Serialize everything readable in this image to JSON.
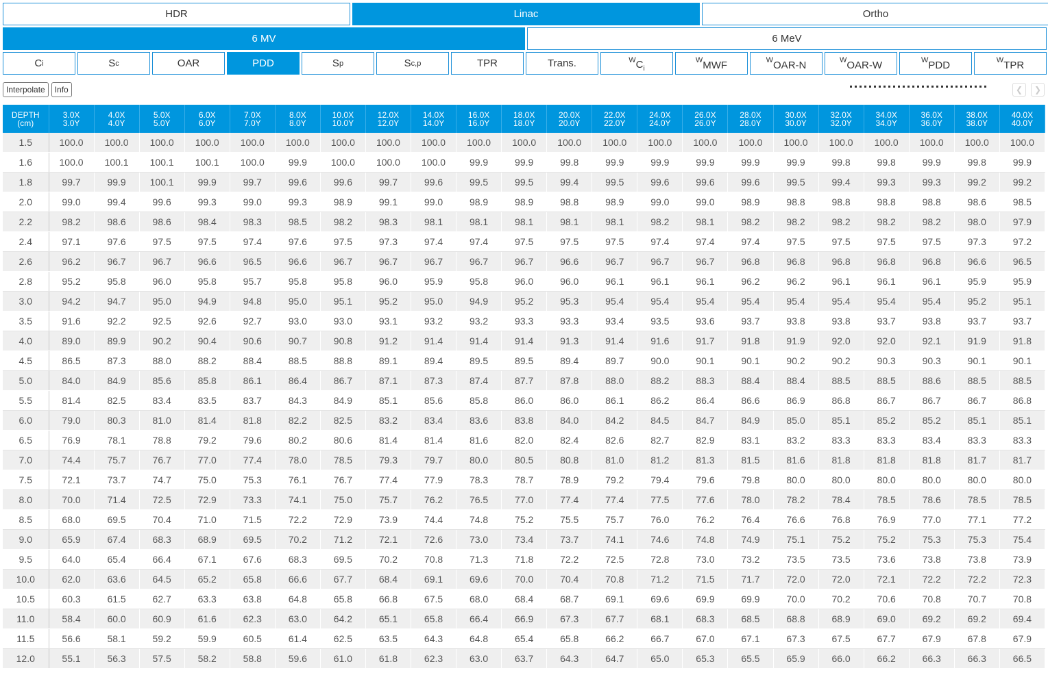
{
  "modality_tabs": [
    {
      "label": "HDR",
      "active": false
    },
    {
      "label": "Linac",
      "active": true
    },
    {
      "label": "Ortho",
      "active": false
    }
  ],
  "energy_tabs": [
    {
      "label": "6 MV",
      "active": true
    },
    {
      "label": "6 MeV",
      "active": false
    }
  ],
  "param_tabs": [
    {
      "main": "C",
      "sub": "i",
      "active": false
    },
    {
      "main": "S",
      "sub": "c",
      "active": false
    },
    {
      "main": "OAR",
      "sub": "",
      "active": false
    },
    {
      "main": "PDD",
      "sub": "",
      "active": true
    },
    {
      "main": "S",
      "sub": "p",
      "active": false
    },
    {
      "main": "S",
      "sub": "c,p",
      "active": false
    },
    {
      "main": "TPR",
      "sub": "",
      "active": false
    },
    {
      "main": "Trans.",
      "sub": "",
      "active": false
    },
    {
      "prefix": "W",
      "main": "C",
      "sub": "i",
      "active": false
    },
    {
      "prefix": "W",
      "main": "MWF",
      "sub": "",
      "active": false
    },
    {
      "prefix": "W",
      "main": "OAR-N",
      "sub": "",
      "active": false
    },
    {
      "prefix": "W",
      "main": "OAR-W",
      "sub": "",
      "active": false
    },
    {
      "prefix": "W",
      "main": "PDD",
      "sub": "",
      "active": false
    },
    {
      "prefix": "W",
      "main": "TPR",
      "sub": "",
      "active": false
    }
  ],
  "toolbar": {
    "interpolate_label": "Interpolate",
    "info_label": "Info",
    "prev_icon": "chevron-left-icon",
    "next_icon": "chevron-right-icon"
  },
  "colors": {
    "accent": "#0096de",
    "row_alt": "#efefef"
  },
  "table": {
    "depth_header_line1": "DEPTH",
    "depth_header_line2": "(cm)",
    "fields": [
      [
        "3.0X",
        "3.0Y"
      ],
      [
        "4.0X",
        "4.0Y"
      ],
      [
        "5.0X",
        "5.0Y"
      ],
      [
        "6.0X",
        "6.0Y"
      ],
      [
        "7.0X",
        "7.0Y"
      ],
      [
        "8.0X",
        "8.0Y"
      ],
      [
        "10.0X",
        "10.0Y"
      ],
      [
        "12.0X",
        "12.0Y"
      ],
      [
        "14.0X",
        "14.0Y"
      ],
      [
        "16.0X",
        "16.0Y"
      ],
      [
        "18.0X",
        "18.0Y"
      ],
      [
        "20.0X",
        "20.0Y"
      ],
      [
        "22.0X",
        "22.0Y"
      ],
      [
        "24.0X",
        "24.0Y"
      ],
      [
        "26.0X",
        "26.0Y"
      ],
      [
        "28.0X",
        "28.0Y"
      ],
      [
        "30.0X",
        "30.0Y"
      ],
      [
        "32.0X",
        "32.0Y"
      ],
      [
        "34.0X",
        "34.0Y"
      ],
      [
        "36.0X",
        "36.0Y"
      ],
      [
        "38.0X",
        "38.0Y"
      ],
      [
        "40.0X",
        "40.0Y"
      ]
    ],
    "rows": [
      {
        "depth": "1.5",
        "values": [
          "100.0",
          "100.0",
          "100.0",
          "100.0",
          "100.0",
          "100.0",
          "100.0",
          "100.0",
          "100.0",
          "100.0",
          "100.0",
          "100.0",
          "100.0",
          "100.0",
          "100.0",
          "100.0",
          "100.0",
          "100.0",
          "100.0",
          "100.0",
          "100.0",
          "100.0"
        ]
      },
      {
        "depth": "1.6",
        "values": [
          "100.0",
          "100.1",
          "100.1",
          "100.1",
          "100.0",
          "99.9",
          "100.0",
          "100.0",
          "100.0",
          "99.9",
          "99.9",
          "99.8",
          "99.9",
          "99.9",
          "99.9",
          "99.9",
          "99.9",
          "99.8",
          "99.8",
          "99.9",
          "99.8",
          "99.9"
        ]
      },
      {
        "depth": "1.8",
        "values": [
          "99.7",
          "99.9",
          "100.1",
          "99.9",
          "99.7",
          "99.6",
          "99.6",
          "99.7",
          "99.6",
          "99.5",
          "99.5",
          "99.4",
          "99.5",
          "99.6",
          "99.6",
          "99.6",
          "99.5",
          "99.4",
          "99.3",
          "99.3",
          "99.2",
          "99.2"
        ]
      },
      {
        "depth": "2.0",
        "values": [
          "99.0",
          "99.4",
          "99.6",
          "99.3",
          "99.0",
          "99.3",
          "98.9",
          "99.1",
          "99.0",
          "98.9",
          "98.9",
          "98.8",
          "98.9",
          "99.0",
          "99.0",
          "98.9",
          "98.8",
          "98.8",
          "98.8",
          "98.8",
          "98.6",
          "98.5"
        ]
      },
      {
        "depth": "2.2",
        "values": [
          "98.2",
          "98.6",
          "98.6",
          "98.4",
          "98.3",
          "98.5",
          "98.2",
          "98.3",
          "98.1",
          "98.1",
          "98.1",
          "98.1",
          "98.1",
          "98.2",
          "98.1",
          "98.2",
          "98.2",
          "98.2",
          "98.2",
          "98.2",
          "98.0",
          "97.9"
        ]
      },
      {
        "depth": "2.4",
        "values": [
          "97.1",
          "97.6",
          "97.5",
          "97.5",
          "97.4",
          "97.6",
          "97.5",
          "97.3",
          "97.4",
          "97.4",
          "97.5",
          "97.5",
          "97.5",
          "97.4",
          "97.4",
          "97.4",
          "97.5",
          "97.5",
          "97.5",
          "97.5",
          "97.3",
          "97.2"
        ]
      },
      {
        "depth": "2.6",
        "values": [
          "96.2",
          "96.7",
          "96.7",
          "96.6",
          "96.5",
          "96.6",
          "96.7",
          "96.7",
          "96.7",
          "96.7",
          "96.7",
          "96.6",
          "96.7",
          "96.7",
          "96.7",
          "96.8",
          "96.8",
          "96.8",
          "96.8",
          "96.8",
          "96.6",
          "96.5"
        ]
      },
      {
        "depth": "2.8",
        "values": [
          "95.2",
          "95.8",
          "96.0",
          "95.8",
          "95.7",
          "95.8",
          "95.8",
          "96.0",
          "95.9",
          "95.8",
          "96.0",
          "96.0",
          "96.1",
          "96.1",
          "96.1",
          "96.2",
          "96.2",
          "96.1",
          "96.1",
          "96.1",
          "95.9",
          "95.9"
        ]
      },
      {
        "depth": "3.0",
        "values": [
          "94.2",
          "94.7",
          "95.0",
          "94.9",
          "94.8",
          "95.0",
          "95.1",
          "95.2",
          "95.0",
          "94.9",
          "95.2",
          "95.3",
          "95.4",
          "95.4",
          "95.4",
          "95.4",
          "95.4",
          "95.4",
          "95.4",
          "95.4",
          "95.2",
          "95.1"
        ]
      },
      {
        "depth": "3.5",
        "values": [
          "91.6",
          "92.2",
          "92.5",
          "92.6",
          "92.7",
          "93.0",
          "93.0",
          "93.1",
          "93.2",
          "93.2",
          "93.3",
          "93.3",
          "93.4",
          "93.5",
          "93.6",
          "93.7",
          "93.8",
          "93.8",
          "93.7",
          "93.8",
          "93.7",
          "93.7"
        ]
      },
      {
        "depth": "4.0",
        "values": [
          "89.0",
          "89.9",
          "90.2",
          "90.4",
          "90.6",
          "90.7",
          "90.8",
          "91.2",
          "91.4",
          "91.4",
          "91.4",
          "91.3",
          "91.4",
          "91.6",
          "91.7",
          "91.8",
          "91.9",
          "92.0",
          "92.0",
          "92.1",
          "91.9",
          "91.8"
        ]
      },
      {
        "depth": "4.5",
        "values": [
          "86.5",
          "87.3",
          "88.0",
          "88.2",
          "88.4",
          "88.5",
          "88.8",
          "89.1",
          "89.4",
          "89.5",
          "89.5",
          "89.4",
          "89.7",
          "90.0",
          "90.1",
          "90.1",
          "90.2",
          "90.2",
          "90.3",
          "90.3",
          "90.1",
          "90.1"
        ]
      },
      {
        "depth": "5.0",
        "values": [
          "84.0",
          "84.9",
          "85.6",
          "85.8",
          "86.1",
          "86.4",
          "86.7",
          "87.1",
          "87.3",
          "87.4",
          "87.7",
          "87.8",
          "88.0",
          "88.2",
          "88.3",
          "88.4",
          "88.4",
          "88.5",
          "88.5",
          "88.6",
          "88.5",
          "88.5"
        ]
      },
      {
        "depth": "5.5",
        "values": [
          "81.4",
          "82.5",
          "83.4",
          "83.5",
          "83.7",
          "84.3",
          "84.9",
          "85.1",
          "85.6",
          "85.8",
          "86.0",
          "86.0",
          "86.1",
          "86.2",
          "86.4",
          "86.6",
          "86.9",
          "86.8",
          "86.7",
          "86.7",
          "86.7",
          "86.8"
        ]
      },
      {
        "depth": "6.0",
        "values": [
          "79.0",
          "80.3",
          "81.0",
          "81.4",
          "81.8",
          "82.2",
          "82.5",
          "83.2",
          "83.4",
          "83.6",
          "83.8",
          "84.0",
          "84.2",
          "84.5",
          "84.7",
          "84.9",
          "85.0",
          "85.1",
          "85.2",
          "85.2",
          "85.1",
          "85.1"
        ]
      },
      {
        "depth": "6.5",
        "values": [
          "76.9",
          "78.1",
          "78.8",
          "79.2",
          "79.6",
          "80.2",
          "80.6",
          "81.4",
          "81.4",
          "81.6",
          "82.0",
          "82.4",
          "82.6",
          "82.7",
          "82.9",
          "83.1",
          "83.2",
          "83.3",
          "83.3",
          "83.4",
          "83.3",
          "83.3"
        ]
      },
      {
        "depth": "7.0",
        "values": [
          "74.4",
          "75.7",
          "76.7",
          "77.0",
          "77.4",
          "78.0",
          "78.5",
          "79.3",
          "79.7",
          "80.0",
          "80.5",
          "80.8",
          "81.0",
          "81.2",
          "81.3",
          "81.5",
          "81.6",
          "81.8",
          "81.8",
          "81.8",
          "81.7",
          "81.7"
        ]
      },
      {
        "depth": "7.5",
        "values": [
          "72.1",
          "73.7",
          "74.7",
          "75.0",
          "75.3",
          "76.1",
          "76.7",
          "77.4",
          "77.9",
          "78.3",
          "78.7",
          "78.9",
          "79.2",
          "79.4",
          "79.6",
          "79.8",
          "80.0",
          "80.0",
          "80.0",
          "80.0",
          "80.0",
          "80.0"
        ]
      },
      {
        "depth": "8.0",
        "values": [
          "70.0",
          "71.4",
          "72.5",
          "72.9",
          "73.3",
          "74.1",
          "75.0",
          "75.7",
          "76.2",
          "76.5",
          "77.0",
          "77.4",
          "77.4",
          "77.5",
          "77.6",
          "78.0",
          "78.2",
          "78.4",
          "78.5",
          "78.6",
          "78.5",
          "78.5"
        ]
      },
      {
        "depth": "8.5",
        "values": [
          "68.0",
          "69.5",
          "70.4",
          "71.0",
          "71.5",
          "72.2",
          "72.9",
          "73.9",
          "74.4",
          "74.8",
          "75.2",
          "75.5",
          "75.7",
          "76.0",
          "76.2",
          "76.4",
          "76.6",
          "76.8",
          "76.9",
          "77.0",
          "77.1",
          "77.2"
        ]
      },
      {
        "depth": "9.0",
        "values": [
          "65.9",
          "67.4",
          "68.3",
          "68.9",
          "69.5",
          "70.2",
          "71.2",
          "72.1",
          "72.6",
          "73.0",
          "73.4",
          "73.7",
          "74.1",
          "74.6",
          "74.8",
          "74.9",
          "75.1",
          "75.2",
          "75.2",
          "75.3",
          "75.3",
          "75.4"
        ]
      },
      {
        "depth": "9.5",
        "values": [
          "64.0",
          "65.4",
          "66.4",
          "67.1",
          "67.6",
          "68.3",
          "69.5",
          "70.2",
          "70.8",
          "71.3",
          "71.8",
          "72.2",
          "72.5",
          "72.8",
          "73.0",
          "73.2",
          "73.5",
          "73.5",
          "73.6",
          "73.8",
          "73.8",
          "73.9"
        ]
      },
      {
        "depth": "10.0",
        "values": [
          "62.0",
          "63.6",
          "64.5",
          "65.2",
          "65.8",
          "66.6",
          "67.7",
          "68.4",
          "69.1",
          "69.6",
          "70.0",
          "70.4",
          "70.8",
          "71.2",
          "71.5",
          "71.7",
          "72.0",
          "72.0",
          "72.1",
          "72.2",
          "72.2",
          "72.3"
        ]
      },
      {
        "depth": "10.5",
        "values": [
          "60.3",
          "61.5",
          "62.7",
          "63.3",
          "63.8",
          "64.8",
          "65.8",
          "66.8",
          "67.5",
          "68.0",
          "68.4",
          "68.7",
          "69.1",
          "69.6",
          "69.9",
          "69.9",
          "70.0",
          "70.2",
          "70.6",
          "70.8",
          "70.7",
          "70.8"
        ]
      },
      {
        "depth": "11.0",
        "values": [
          "58.4",
          "60.0",
          "60.9",
          "61.6",
          "62.3",
          "63.0",
          "64.2",
          "65.1",
          "65.8",
          "66.4",
          "66.9",
          "67.3",
          "67.7",
          "68.1",
          "68.3",
          "68.5",
          "68.8",
          "68.9",
          "69.0",
          "69.2",
          "69.2",
          "69.4"
        ]
      },
      {
        "depth": "11.5",
        "values": [
          "56.6",
          "58.1",
          "59.2",
          "59.9",
          "60.5",
          "61.4",
          "62.5",
          "63.5",
          "64.3",
          "64.8",
          "65.4",
          "65.8",
          "66.2",
          "66.7",
          "67.0",
          "67.1",
          "67.3",
          "67.5",
          "67.7",
          "67.9",
          "67.8",
          "67.9"
        ]
      },
      {
        "depth": "12.0",
        "values": [
          "55.1",
          "56.3",
          "57.5",
          "58.2",
          "58.8",
          "59.6",
          "61.0",
          "61.8",
          "62.3",
          "63.0",
          "63.7",
          "64.3",
          "64.7",
          "65.0",
          "65.3",
          "65.5",
          "65.9",
          "66.0",
          "66.2",
          "66.3",
          "66.3",
          "66.5"
        ]
      }
    ]
  }
}
